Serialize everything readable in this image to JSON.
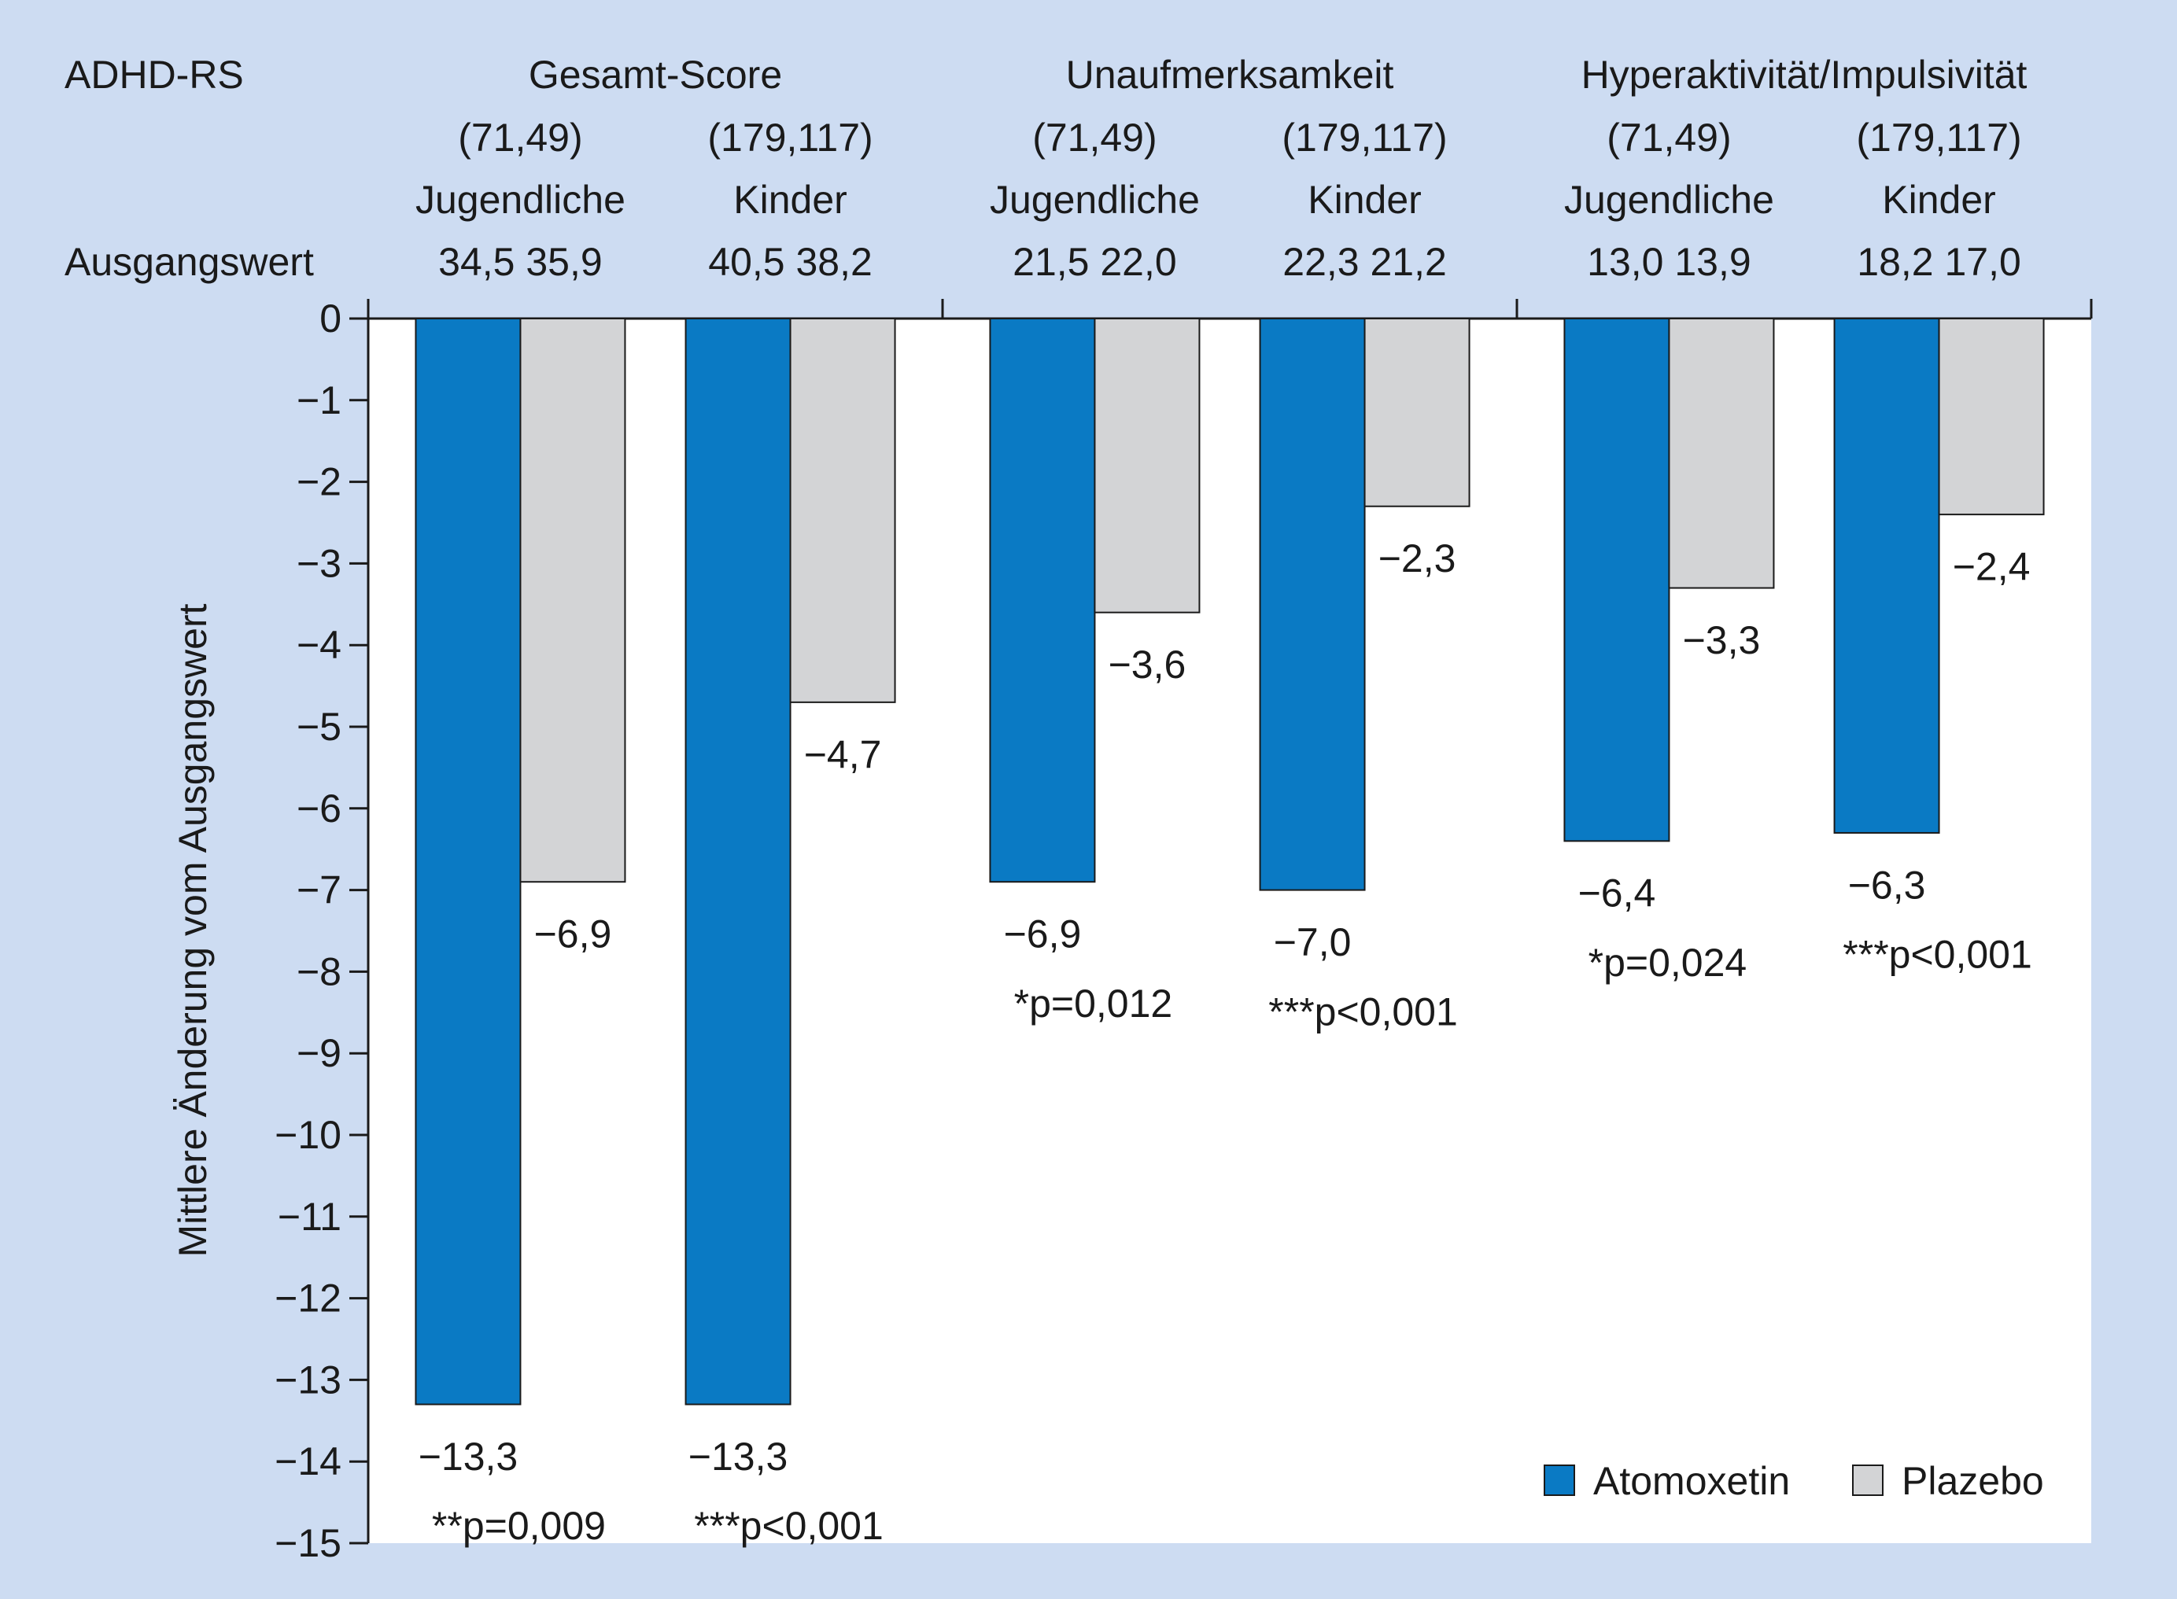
{
  "chart_data": {
    "type": "bar",
    "ylabel": "Mittlere Änderung vom Ausgangswert",
    "ylim": [
      -15,
      0
    ],
    "yticks": [
      "0",
      "−1",
      "−2",
      "−3",
      "−4",
      "−5",
      "−6",
      "−7",
      "−8",
      "−9",
      "−10",
      "−11",
      "−12",
      "−13",
      "−14",
      "−15"
    ],
    "ytick_values": [
      0,
      -1,
      -2,
      -3,
      -4,
      -5,
      -6,
      -7,
      -8,
      -9,
      -10,
      -11,
      -12,
      -13,
      -14,
      -15
    ],
    "header": {
      "scale_label": "ADHD-RS",
      "baseline_label": "Ausgangswert"
    },
    "groups": [
      {
        "name": "Gesamt-Score"
      },
      {
        "name": "Unaufmerksamkeit"
      },
      {
        "name": "Hyperaktivität/Impulsivität"
      }
    ],
    "categories": [
      {
        "group": 0,
        "label": "Jugendliche",
        "n": "(71,49)",
        "baseline": "34,5 35,9",
        "sig": "**p=0,009"
      },
      {
        "group": 0,
        "label": "Kinder",
        "n": "(179,117)",
        "baseline": "40,5 38,2",
        "sig": "***p<0,001"
      },
      {
        "group": 1,
        "label": "Jugendliche",
        "n": "(71,49)",
        "baseline": "21,5 22,0",
        "sig": "*p=0,012"
      },
      {
        "group": 1,
        "label": "Kinder",
        "n": "(179,117)",
        "baseline": "22,3 21,2",
        "sig": "***p<0,001"
      },
      {
        "group": 2,
        "label": "Jugendliche",
        "n": "(71,49)",
        "baseline": "13,0 13,9",
        "sig": "*p=0,024"
      },
      {
        "group": 2,
        "label": "Kinder",
        "n": "(179,117)",
        "baseline": "18,2 17,0",
        "sig": "***p<0,001"
      }
    ],
    "series": [
      {
        "name": "Atomoxetin",
        "color": "#0a7ac4",
        "values": [
          -13.3,
          -13.3,
          -6.9,
          -7.0,
          -6.4,
          -6.3
        ],
        "labels": [
          "−13,3",
          "−13,3",
          "−6,9",
          "−7,0",
          "−6,4",
          "−6,3"
        ]
      },
      {
        "name": "Plazebo",
        "color": "#d3d4d6",
        "values": [
          -6.9,
          -4.7,
          -3.6,
          -2.3,
          -3.3,
          -2.4
        ],
        "labels": [
          "−6,9",
          "−4,7",
          "−3,6",
          "−2,3",
          "−3,3",
          "−2,4"
        ]
      }
    ],
    "legend": "bottom-right",
    "grid": false
  }
}
